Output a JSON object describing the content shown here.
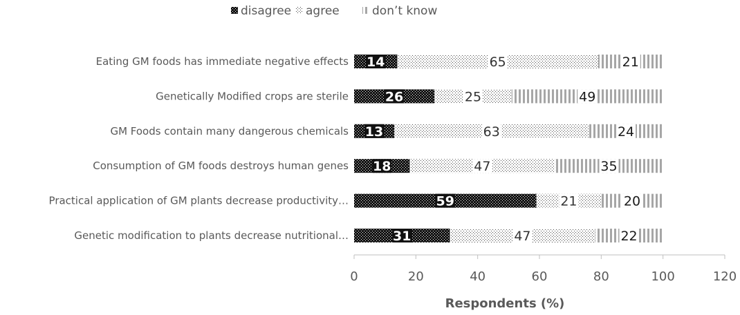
{
  "chart_data": {
    "type": "bar",
    "orientation": "horizontal",
    "stacked": true,
    "categories": [
      "Eating GM foods has immediate negative effects",
      "Genetically Modified crops are sterile",
      "GM Foods contain many dangerous chemicals",
      "Consumption of GM foods destroys human genes",
      "Practical application of GM plants decrease productivity…",
      "Genetic modification to plants decrease nutritional…"
    ],
    "series": [
      {
        "name": "disagree",
        "values": [
          14,
          26,
          13,
          18,
          59,
          31
        ]
      },
      {
        "name": "agree",
        "values": [
          65,
          25,
          63,
          47,
          21,
          47
        ]
      },
      {
        "name": "don’t know",
        "values": [
          21,
          49,
          24,
          35,
          20,
          22
        ]
      }
    ],
    "title": "",
    "xlabel": "Respondents (%)",
    "ylabel": "",
    "xlim": [
      0,
      120
    ],
    "xticks": [
      0,
      20,
      40,
      60,
      80,
      100,
      120
    ],
    "grid": false,
    "legend": "top",
    "colors": {
      "disagree": "#1a1a1a",
      "agree": "#595959",
      "dont_know": "#a6a6a6",
      "text": "#595959",
      "axis": "#bfbfbf"
    }
  }
}
